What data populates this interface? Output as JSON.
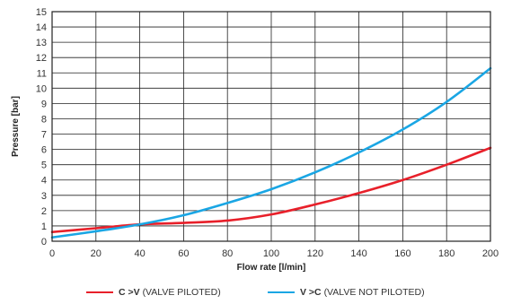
{
  "chart_data": {
    "type": "line",
    "xlabel": "Flow rate [l/min]",
    "ylabel": "Pressure [bar]",
    "xlim": [
      0,
      200
    ],
    "ylim": [
      0,
      15
    ],
    "xticks": [
      0,
      20,
      40,
      60,
      80,
      100,
      120,
      140,
      160,
      180,
      200
    ],
    "yticks": [
      0,
      1,
      2,
      3,
      4,
      5,
      6,
      7,
      8,
      9,
      10,
      11,
      12,
      13,
      14,
      15
    ],
    "grid": true,
    "legend_position": "bottom",
    "series": [
      {
        "name": "C >V (VALVE PILOTED)",
        "name_bold": "C >V",
        "name_rest": "(VALVE PILOTED)",
        "color": "#e8202a",
        "x": [
          0,
          20,
          40,
          60,
          80,
          100,
          120,
          140,
          160,
          180,
          200
        ],
        "y": [
          0.6,
          0.85,
          1.1,
          1.2,
          1.35,
          1.75,
          2.4,
          3.15,
          4.0,
          5.0,
          6.1
        ]
      },
      {
        "name": "V >C (VALVE NOT PILOTED)",
        "name_bold": "V >C",
        "name_rest": "(VALVE NOT PILOTED)",
        "color": "#1aa6e4",
        "x": [
          0,
          20,
          40,
          60,
          80,
          100,
          120,
          140,
          160,
          180,
          200
        ],
        "y": [
          0.25,
          0.65,
          1.1,
          1.7,
          2.5,
          3.4,
          4.5,
          5.8,
          7.3,
          9.1,
          11.3
        ]
      }
    ]
  }
}
